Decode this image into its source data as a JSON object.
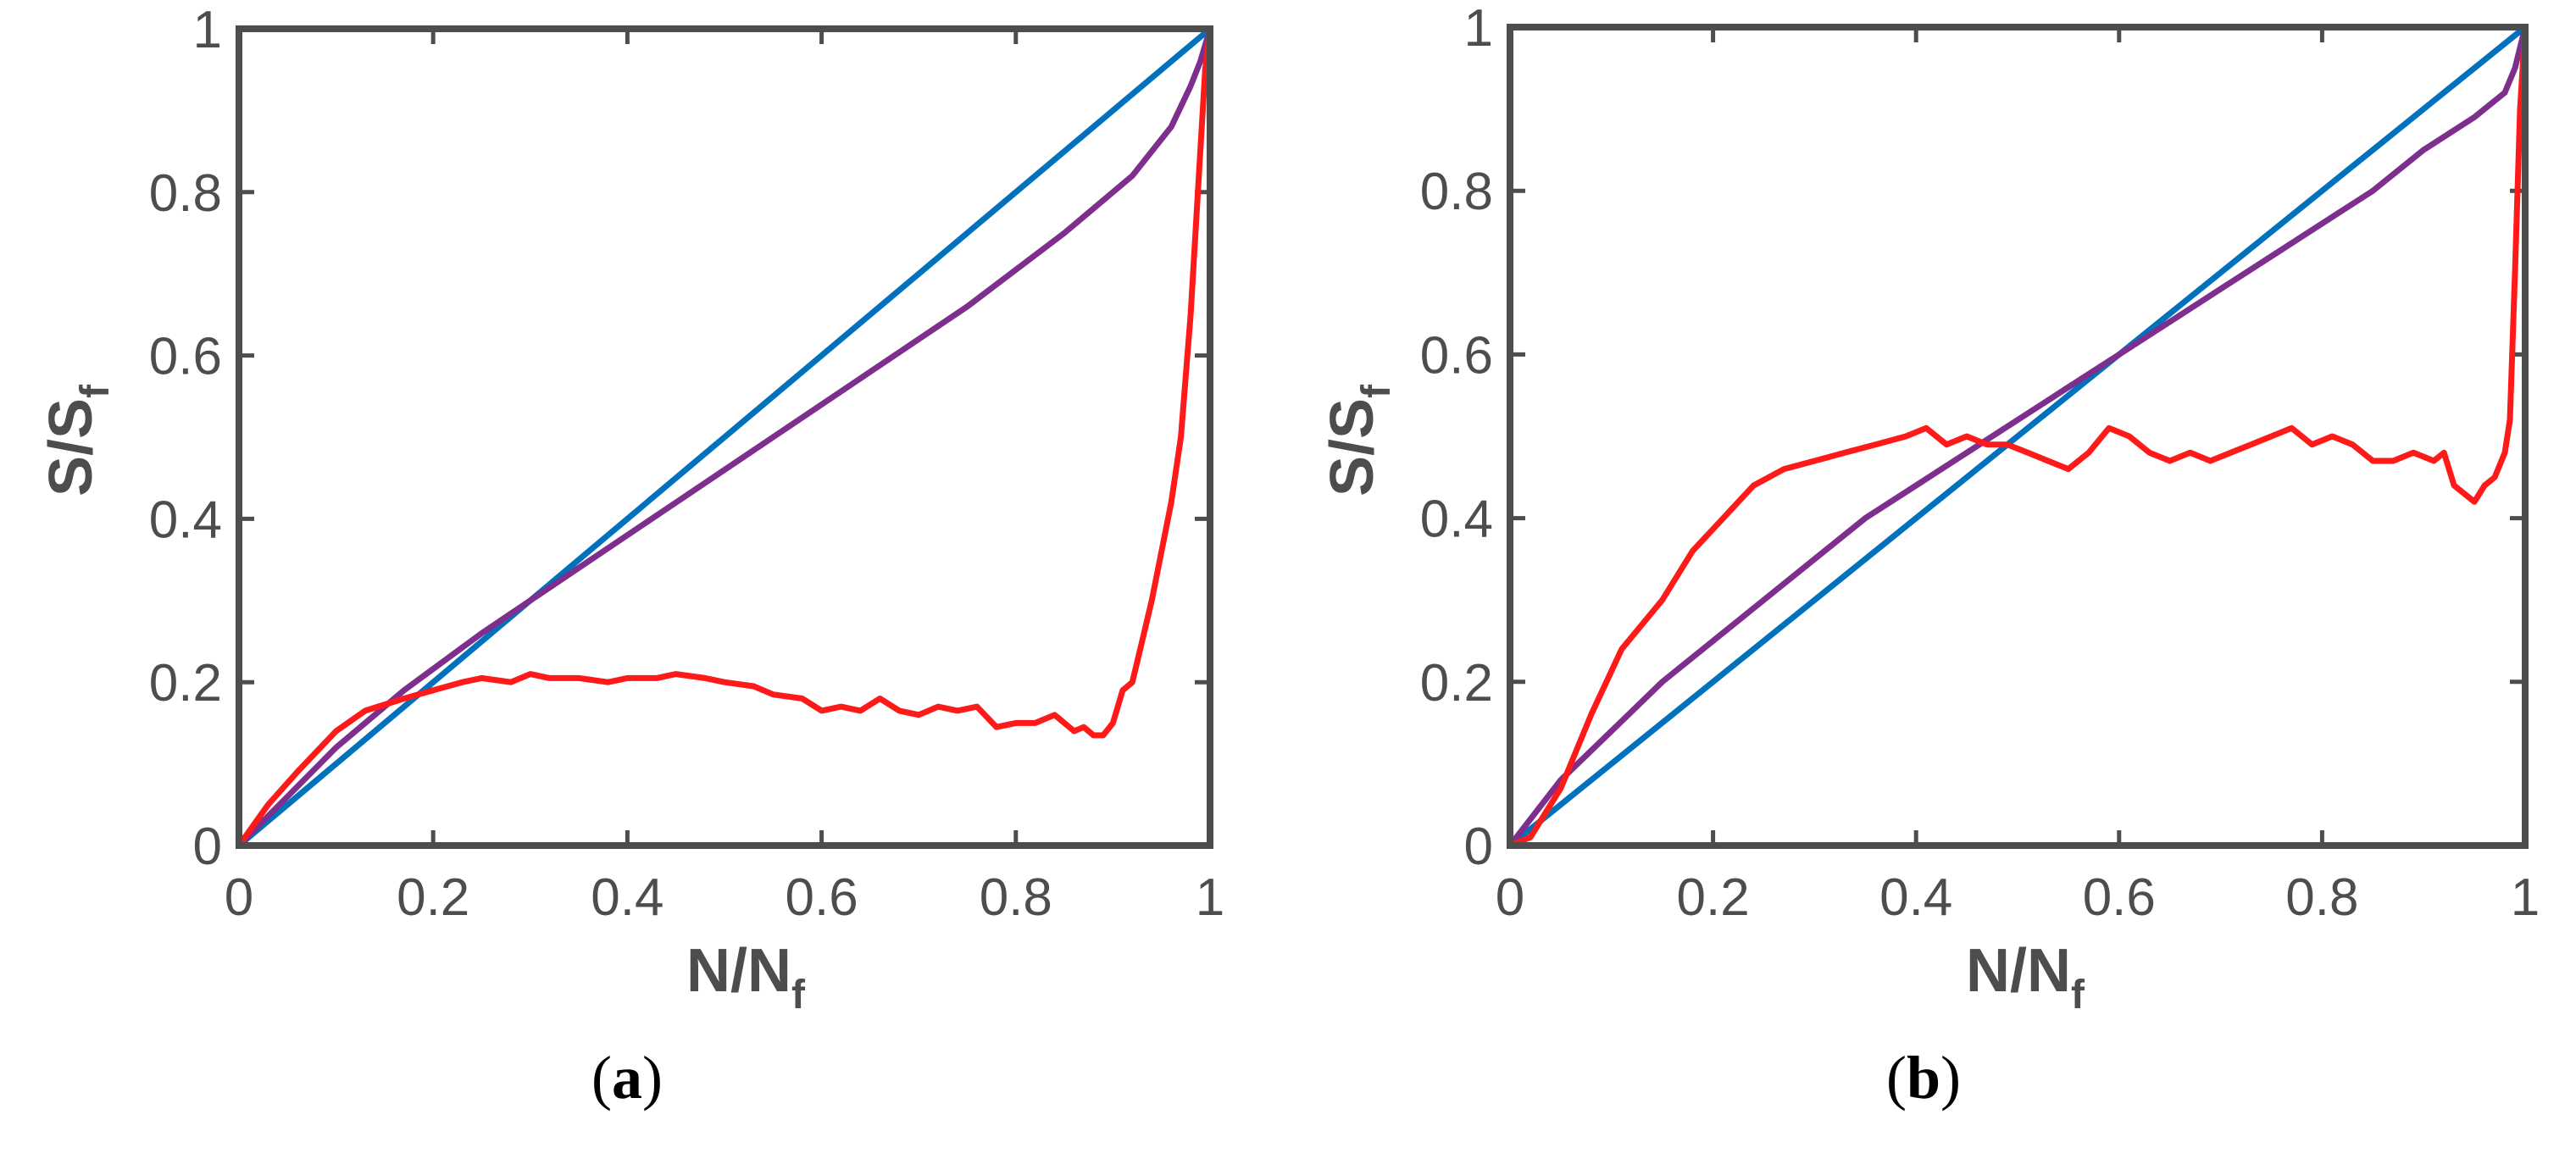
{
  "chart_data": [
    {
      "type": "line",
      "panel_label": "a",
      "xlabel": "N/N",
      "xlabel_sub": "f",
      "ylabel": "S/S",
      "ylabel_sub": "f",
      "xlim": [
        0,
        1
      ],
      "ylim": [
        0,
        1
      ],
      "xticks": [
        0,
        0.2,
        0.4,
        0.6,
        0.8,
        1
      ],
      "yticks": [
        0,
        0.2,
        0.4,
        0.6,
        0.8,
        1
      ],
      "xtick_labels": [
        "0",
        "0.2",
        "0.4",
        "0.6",
        "0.8",
        "1"
      ],
      "ytick_labels": [
        "0",
        "0.2",
        "0.4",
        "0.6",
        "0.8",
        "1"
      ],
      "series": [
        {
          "name": "blue",
          "color": "#0072bd",
          "x": [
            0,
            1
          ],
          "y": [
            0,
            1
          ]
        },
        {
          "name": "purple",
          "color": "#7e2f8e",
          "x": [
            0,
            0.05,
            0.1,
            0.17,
            0.25,
            0.35,
            0.45,
            0.55,
            0.65,
            0.75,
            0.85,
            0.92,
            0.96,
            0.98,
            0.99,
            1.0
          ],
          "y": [
            0,
            0.06,
            0.12,
            0.19,
            0.26,
            0.34,
            0.42,
            0.5,
            0.58,
            0.66,
            0.75,
            0.82,
            0.88,
            0.93,
            0.96,
            1.0
          ]
        },
        {
          "name": "red",
          "color": "#ff1a1a",
          "x": [
            0,
            0.03,
            0.06,
            0.1,
            0.13,
            0.17,
            0.2,
            0.23,
            0.25,
            0.28,
            0.3,
            0.32,
            0.35,
            0.38,
            0.4,
            0.43,
            0.45,
            0.48,
            0.5,
            0.53,
            0.55,
            0.58,
            0.6,
            0.62,
            0.64,
            0.66,
            0.68,
            0.7,
            0.72,
            0.74,
            0.76,
            0.78,
            0.8,
            0.82,
            0.84,
            0.86,
            0.87,
            0.88,
            0.89,
            0.9,
            0.91,
            0.92,
            0.93,
            0.94,
            0.95,
            0.96,
            0.97,
            0.98,
            0.985,
            0.99,
            0.995,
            1.0
          ],
          "y": [
            0,
            0.05,
            0.09,
            0.14,
            0.165,
            0.18,
            0.19,
            0.2,
            0.205,
            0.2,
            0.21,
            0.205,
            0.205,
            0.2,
            0.205,
            0.205,
            0.21,
            0.205,
            0.2,
            0.195,
            0.185,
            0.18,
            0.165,
            0.17,
            0.165,
            0.18,
            0.165,
            0.16,
            0.17,
            0.165,
            0.17,
            0.145,
            0.15,
            0.15,
            0.16,
            0.14,
            0.145,
            0.135,
            0.135,
            0.15,
            0.19,
            0.2,
            0.25,
            0.3,
            0.36,
            0.42,
            0.5,
            0.65,
            0.75,
            0.85,
            0.95,
            1.0
          ]
        }
      ]
    },
    {
      "type": "line",
      "panel_label": "b",
      "xlabel": "N/N",
      "xlabel_sub": "f",
      "ylabel": "S/S",
      "ylabel_sub": "f",
      "xlim": [
        0,
        1
      ],
      "ylim": [
        0,
        1
      ],
      "xticks": [
        0,
        0.2,
        0.4,
        0.6,
        0.8,
        1
      ],
      "yticks": [
        0,
        0.2,
        0.4,
        0.6,
        0.8,
        1
      ],
      "xtick_labels": [
        "0",
        "0.2",
        "0.4",
        "0.6",
        "0.8",
        "1"
      ],
      "ytick_labels": [
        "0",
        "0.2",
        "0.4",
        "0.6",
        "0.8",
        "1"
      ],
      "series": [
        {
          "name": "blue",
          "color": "#0072bd",
          "x": [
            0,
            1
          ],
          "y": [
            0,
            1
          ]
        },
        {
          "name": "purple",
          "color": "#7e2f8e",
          "x": [
            0,
            0.05,
            0.1,
            0.15,
            0.2,
            0.25,
            0.3,
            0.35,
            0.4,
            0.45,
            0.5,
            0.55,
            0.6,
            0.65,
            0.7,
            0.75,
            0.8,
            0.85,
            0.9,
            0.95,
            0.98,
            0.99,
            1.0
          ],
          "y": [
            0,
            0.08,
            0.14,
            0.2,
            0.25,
            0.3,
            0.35,
            0.4,
            0.44,
            0.48,
            0.52,
            0.56,
            0.6,
            0.64,
            0.68,
            0.72,
            0.76,
            0.8,
            0.85,
            0.89,
            0.92,
            0.95,
            1.0
          ]
        },
        {
          "name": "red",
          "color": "#ff1a1a",
          "x": [
            0,
            0.02,
            0.05,
            0.08,
            0.11,
            0.15,
            0.18,
            0.21,
            0.24,
            0.27,
            0.3,
            0.33,
            0.36,
            0.39,
            0.41,
            0.43,
            0.45,
            0.47,
            0.49,
            0.51,
            0.53,
            0.55,
            0.57,
            0.59,
            0.61,
            0.63,
            0.65,
            0.67,
            0.69,
            0.71,
            0.73,
            0.75,
            0.77,
            0.79,
            0.81,
            0.83,
            0.85,
            0.87,
            0.89,
            0.91,
            0.92,
            0.93,
            0.94,
            0.95,
            0.96,
            0.97,
            0.98,
            0.985,
            0.99,
            0.995,
            1.0
          ],
          "y": [
            0,
            0.01,
            0.07,
            0.16,
            0.24,
            0.3,
            0.36,
            0.4,
            0.44,
            0.46,
            0.47,
            0.48,
            0.49,
            0.5,
            0.51,
            0.49,
            0.5,
            0.49,
            0.49,
            0.48,
            0.47,
            0.46,
            0.48,
            0.51,
            0.5,
            0.48,
            0.47,
            0.48,
            0.47,
            0.48,
            0.49,
            0.5,
            0.51,
            0.49,
            0.5,
            0.49,
            0.47,
            0.47,
            0.48,
            0.47,
            0.48,
            0.44,
            0.43,
            0.42,
            0.44,
            0.45,
            0.48,
            0.52,
            0.7,
            0.9,
            1.0
          ]
        }
      ]
    }
  ]
}
